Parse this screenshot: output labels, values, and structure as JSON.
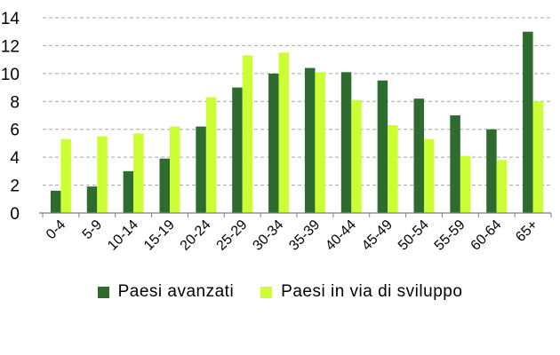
{
  "chart_data": {
    "type": "bar",
    "categories": [
      "0-4",
      "5-9",
      "10-14",
      "15-19",
      "20-24",
      "25-29",
      "30-34",
      "35-39",
      "40-44",
      "45-49",
      "50-54",
      "55-59",
      "60-64",
      "65+"
    ],
    "series": [
      {
        "name": "Paesi avanzati",
        "color": "#2e6b2e",
        "values": [
          1.6,
          1.9,
          3.0,
          3.9,
          6.2,
          9.0,
          10.0,
          10.4,
          10.1,
          9.5,
          8.2,
          7.0,
          6.0,
          13.0
        ]
      },
      {
        "name": "Paesi in via di sviluppo",
        "color": "#ccff33",
        "values": [
          5.3,
          5.5,
          5.7,
          6.2,
          8.3,
          11.3,
          11.5,
          10.1,
          8.1,
          6.3,
          5.3,
          4.1,
          3.8,
          8.0
        ]
      }
    ],
    "y_ticks": [
      0,
      2,
      4,
      6,
      8,
      10,
      12,
      14
    ],
    "ylim": [
      0,
      14
    ],
    "grid": true,
    "legend_position": "bottom"
  }
}
